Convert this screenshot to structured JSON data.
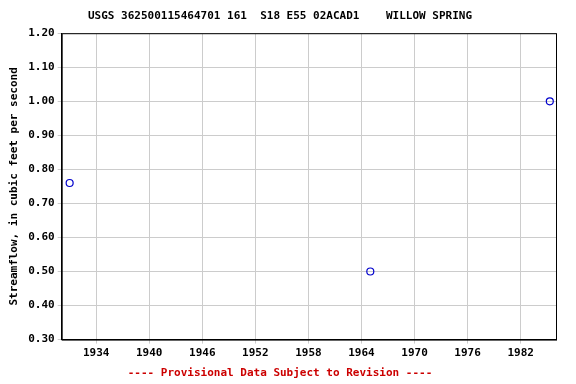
{
  "chart_data": {
    "type": "scatter",
    "title": "USGS 362500115464701 161  S18 E55 02ACAD1    WILLOW SPRING",
    "y_label": "Streamflow, in cubic feet per second",
    "annotations": [
      "---- Provisional Data Subject to Revision ----"
    ],
    "x": [
      1931.0,
      1965.0,
      1985.3
    ],
    "values": [
      0.76,
      0.5,
      1.0
    ],
    "color": "#0000cc",
    "marker": "circle_open",
    "xlim": [
      1930.1,
      1986.0
    ],
    "xticks": [
      1934,
      1940,
      1946,
      1952,
      1958,
      1964,
      1970,
      1976,
      1982
    ],
    "ylim": [
      0.3,
      1.2
    ],
    "yticks": [
      {
        "value": 0.3,
        "label": "0.30"
      },
      {
        "value": 0.4,
        "label": "0.40"
      },
      {
        "value": 0.5,
        "label": "0.50"
      },
      {
        "value": 0.6,
        "label": "0.60"
      },
      {
        "value": 0.7,
        "label": "0.70"
      },
      {
        "value": 0.8,
        "label": "0.80"
      },
      {
        "value": 0.9,
        "label": "0.90"
      },
      {
        "value": 1.0,
        "label": "1.00"
      },
      {
        "value": 1.1,
        "label": "1.10"
      },
      {
        "value": 1.2,
        "label": "1.20"
      }
    ],
    "grid": true
  }
}
